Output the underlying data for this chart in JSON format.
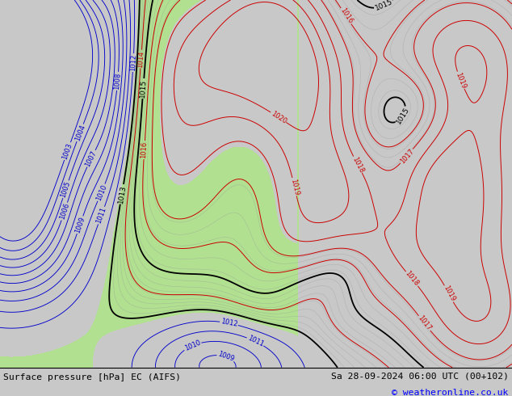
{
  "title_left": "Surface pressure [hPa] EC (AIFS)",
  "title_right": "Sa 28-09-2024 06:00 UTC (00+102)",
  "copyright": "© weatheronline.co.uk",
  "bg_color": "#c8c8c8",
  "green_color": "#b0e090",
  "fig_width": 6.34,
  "fig_height": 4.9,
  "dpi": 100
}
